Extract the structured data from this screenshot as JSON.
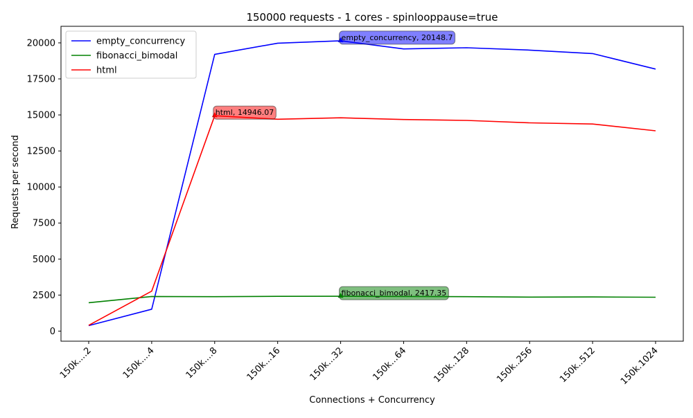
{
  "chart_data": {
    "type": "line",
    "title": "150000 requests - 1 cores - spinlooppause=true",
    "xlabel": "Connections + Concurrency",
    "ylabel": "Requests per second",
    "categories": [
      "150k....2",
      "150k....4",
      "150k....8",
      "150k...16",
      "150k...32",
      "150k...64",
      "150k..128",
      "150k..256",
      "150k..512",
      "150k.1024"
    ],
    "ylim": [
      -700,
      21150
    ],
    "yticks": [
      0,
      2500,
      5000,
      7500,
      10000,
      12500,
      15000,
      17500,
      20000
    ],
    "grid": false,
    "legend_position": "top-left",
    "series": [
      {
        "name": "empty_concurrency",
        "color": "#0000ff",
        "values": [
          380,
          1520,
          19200,
          19980,
          20148.7,
          19580,
          19660,
          19500,
          19260,
          18180
        ]
      },
      {
        "name": "fibonacci_bimodal",
        "color": "#008000",
        "values": [
          1970,
          2400,
          2390,
          2410,
          2417.35,
          2400,
          2390,
          2360,
          2370,
          2350
        ]
      },
      {
        "name": "html",
        "color": "#ff0000",
        "values": [
          400,
          2770,
          14946.07,
          14700,
          14800,
          14680,
          14620,
          14450,
          14370,
          13900
        ]
      }
    ],
    "annotations": [
      {
        "text": "empty_concurrency, 20148.7",
        "series": "empty_concurrency",
        "category_index": 4,
        "value": 20148.7,
        "color": "#0000ff"
      },
      {
        "text": "html, 14946.07",
        "series": "html",
        "category_index": 2,
        "value": 14946.07,
        "color": "#ff0000"
      },
      {
        "text": "fibonacci_bimodal, 2417.35",
        "series": "fibonacci_bimodal",
        "category_index": 4,
        "value": 2417.35,
        "color": "#008000"
      }
    ]
  }
}
